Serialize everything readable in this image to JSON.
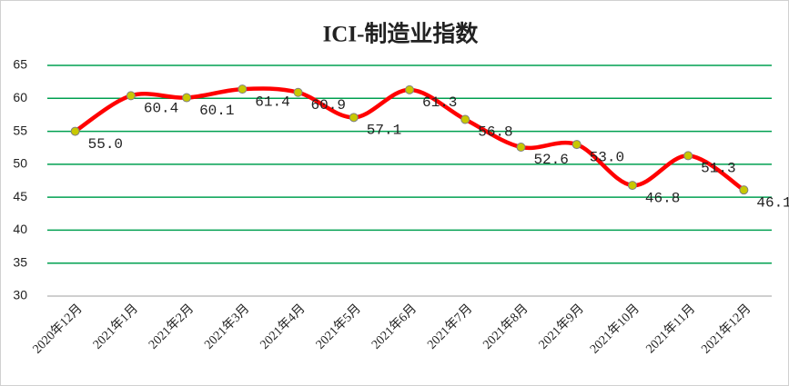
{
  "chart_data": {
    "type": "line",
    "title": "ICI-制造业指数",
    "categories": [
      "2020年12月",
      "2021年1月",
      "2021年2月",
      "2021年3月",
      "2021年4月",
      "2021年5月",
      "2021年6月",
      "2021年7月",
      "2021年8月",
      "2021年9月",
      "2021年10月",
      "2021年11月",
      "2021年12月"
    ],
    "series": [
      {
        "name": "ICI-制造业指数",
        "color": "#ff0000",
        "marker_color": "#c8c800",
        "values": [
          55.0,
          60.4,
          60.1,
          61.4,
          60.9,
          57.1,
          61.3,
          56.8,
          52.6,
          53.0,
          46.8,
          51.3,
          46.1
        ],
        "value_labels": [
          "55.0",
          "60.4",
          "60.1",
          "61.4",
          "60.9",
          "57.1",
          "61.3",
          "56.8",
          "52.6",
          "53.0",
          "46.8",
          "51.3",
          "46.1"
        ]
      }
    ],
    "ylim": [
      30,
      65
    ],
    "yticks": [
      30,
      35,
      40,
      45,
      50,
      55,
      60,
      65
    ],
    "grid": true,
    "grid_color": "#00a050"
  }
}
